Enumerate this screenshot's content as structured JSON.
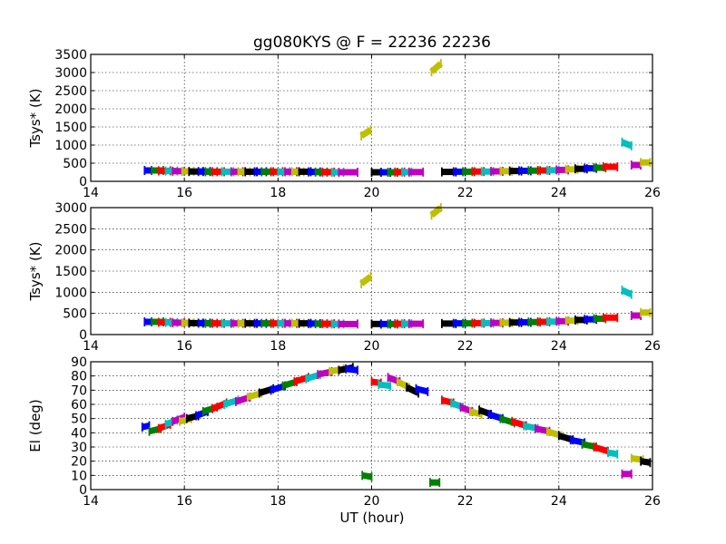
{
  "chart_data": {
    "type": "scatter",
    "title": "gg080KYS @ F = 22236 22236",
    "xlabel": "UT (hour)",
    "xlim": [
      14,
      26
    ],
    "xticks": [
      14,
      16,
      18,
      20,
      22,
      24,
      26
    ],
    "grid": true,
    "palette": [
      "#0000ff",
      "#008000",
      "#ff0000",
      "#00bfbf",
      "#bf00bf",
      "#bfbf00",
      "#000000"
    ],
    "panels": [
      {
        "ylabel": "Tsys* (K)",
        "ylim": [
          0,
          3500
        ],
        "yticks": [
          0,
          500,
          1000,
          1500,
          2000,
          2500,
          3000,
          3500
        ],
        "segments": [
          [
            15.15,
            15.3,
            300,
            300
          ],
          [
            15.3,
            15.55,
            300,
            300
          ],
          [
            15.45,
            15.7,
            290,
            290
          ],
          [
            15.6,
            15.85,
            285,
            285
          ],
          [
            15.75,
            16.0,
            280,
            280
          ],
          [
            15.95,
            16.2,
            275,
            275
          ],
          [
            16.1,
            16.4,
            270,
            270
          ],
          [
            16.3,
            16.55,
            270,
            270
          ],
          [
            16.45,
            16.7,
            265,
            265
          ],
          [
            16.6,
            16.85,
            265,
            265
          ],
          [
            16.8,
            17.05,
            265,
            265
          ],
          [
            17.0,
            17.25,
            265,
            265
          ],
          [
            17.15,
            17.4,
            265,
            265
          ],
          [
            17.3,
            17.55,
            265,
            265
          ],
          [
            17.5,
            17.75,
            265,
            265
          ],
          [
            17.65,
            17.9,
            265,
            265
          ],
          [
            17.85,
            18.1,
            265,
            265
          ],
          [
            18.0,
            18.25,
            265,
            265
          ],
          [
            18.15,
            18.4,
            265,
            265
          ],
          [
            18.3,
            18.55,
            265,
            265
          ],
          [
            18.45,
            18.7,
            265,
            265
          ],
          [
            18.65,
            18.9,
            260,
            260
          ],
          [
            18.8,
            19.05,
            255,
            255
          ],
          [
            18.95,
            19.2,
            255,
            255
          ],
          [
            19.15,
            19.4,
            250,
            250
          ],
          [
            19.3,
            19.7,
            250,
            250
          ],
          [
            19.78,
            19.98,
            1250,
            1420
          ],
          [
            20.0,
            20.2,
            250,
            250
          ],
          [
            20.2,
            20.4,
            250,
            250
          ],
          [
            20.35,
            20.55,
            250,
            250
          ],
          [
            20.5,
            20.7,
            255,
            255
          ],
          [
            20.65,
            20.85,
            255,
            255
          ],
          [
            20.8,
            21.1,
            255,
            255
          ],
          [
            21.28,
            21.48,
            3020,
            3250
          ],
          [
            21.5,
            21.8,
            260,
            260
          ],
          [
            21.75,
            22.0,
            265,
            265
          ],
          [
            21.95,
            22.2,
            265,
            265
          ],
          [
            22.15,
            22.4,
            270,
            270
          ],
          [
            22.35,
            22.6,
            270,
            270
          ],
          [
            22.55,
            22.8,
            275,
            275
          ],
          [
            22.75,
            23.0,
            280,
            280
          ],
          [
            22.95,
            23.2,
            285,
            285
          ],
          [
            23.15,
            23.4,
            290,
            290
          ],
          [
            23.35,
            23.6,
            295,
            295
          ],
          [
            23.55,
            23.8,
            300,
            300
          ],
          [
            23.75,
            24.0,
            305,
            305
          ],
          [
            23.95,
            24.2,
            315,
            315
          ],
          [
            24.15,
            24.4,
            330,
            330
          ],
          [
            24.35,
            24.6,
            345,
            345
          ],
          [
            24.55,
            24.8,
            360,
            360
          ],
          [
            24.75,
            25.0,
            375,
            375
          ],
          [
            24.95,
            25.25,
            400,
            400
          ],
          [
            25.35,
            25.55,
            1080,
            980
          ],
          [
            25.55,
            25.75,
            450,
            450
          ],
          [
            25.75,
            25.95,
            520,
            520
          ]
        ]
      },
      {
        "ylabel": "Tsys* (K)",
        "ylim": [
          0,
          3000
        ],
        "yticks": [
          0,
          500,
          1000,
          1500,
          2000,
          2500,
          3000
        ],
        "segments": [
          [
            15.15,
            15.3,
            300,
            300
          ],
          [
            15.3,
            15.55,
            300,
            300
          ],
          [
            15.45,
            15.7,
            290,
            290
          ],
          [
            15.6,
            15.85,
            285,
            285
          ],
          [
            15.75,
            16.0,
            280,
            280
          ],
          [
            15.95,
            16.2,
            275,
            275
          ],
          [
            16.1,
            16.4,
            270,
            270
          ],
          [
            16.3,
            16.55,
            270,
            270
          ],
          [
            16.45,
            16.7,
            265,
            265
          ],
          [
            16.6,
            16.85,
            265,
            265
          ],
          [
            16.8,
            17.05,
            265,
            265
          ],
          [
            17.0,
            17.25,
            265,
            265
          ],
          [
            17.15,
            17.4,
            265,
            265
          ],
          [
            17.3,
            17.55,
            265,
            265
          ],
          [
            17.5,
            17.75,
            265,
            265
          ],
          [
            17.65,
            17.9,
            265,
            265
          ],
          [
            17.85,
            18.1,
            265,
            265
          ],
          [
            18.0,
            18.25,
            265,
            265
          ],
          [
            18.15,
            18.4,
            265,
            265
          ],
          [
            18.3,
            18.55,
            265,
            265
          ],
          [
            18.45,
            18.7,
            265,
            265
          ],
          [
            18.65,
            18.9,
            260,
            260
          ],
          [
            18.8,
            19.05,
            255,
            255
          ],
          [
            18.95,
            19.2,
            255,
            255
          ],
          [
            19.15,
            19.4,
            250,
            250
          ],
          [
            19.3,
            19.7,
            250,
            250
          ],
          [
            19.78,
            19.98,
            1200,
            1370
          ],
          [
            20.0,
            20.2,
            250,
            250
          ],
          [
            20.2,
            20.4,
            250,
            250
          ],
          [
            20.35,
            20.55,
            250,
            250
          ],
          [
            20.5,
            20.7,
            255,
            255
          ],
          [
            20.65,
            20.85,
            255,
            255
          ],
          [
            20.8,
            21.1,
            255,
            255
          ],
          [
            21.28,
            21.48,
            2820,
            3000
          ],
          [
            21.5,
            21.8,
            260,
            260
          ],
          [
            21.75,
            22.0,
            265,
            265
          ],
          [
            21.95,
            22.2,
            265,
            265
          ],
          [
            22.15,
            22.4,
            270,
            270
          ],
          [
            22.35,
            22.6,
            270,
            270
          ],
          [
            22.55,
            22.8,
            275,
            275
          ],
          [
            22.75,
            23.0,
            280,
            280
          ],
          [
            22.95,
            23.2,
            285,
            285
          ],
          [
            23.15,
            23.4,
            290,
            290
          ],
          [
            23.35,
            23.6,
            295,
            295
          ],
          [
            23.55,
            23.8,
            300,
            300
          ],
          [
            23.75,
            24.0,
            305,
            305
          ],
          [
            23.95,
            24.2,
            315,
            315
          ],
          [
            24.15,
            24.4,
            330,
            330
          ],
          [
            24.35,
            24.6,
            345,
            345
          ],
          [
            24.55,
            24.8,
            360,
            360
          ],
          [
            24.75,
            25.0,
            375,
            375
          ],
          [
            24.95,
            25.25,
            400,
            400
          ],
          [
            25.35,
            25.55,
            1050,
            950
          ],
          [
            25.55,
            25.75,
            450,
            450
          ],
          [
            25.75,
            25.95,
            520,
            520
          ]
        ]
      },
      {
        "ylabel": "El (deg)",
        "ylim": [
          0,
          90
        ],
        "yticks": [
          0,
          10,
          20,
          30,
          40,
          50,
          60,
          70,
          80,
          90
        ],
        "segments": [
          [
            15.1,
            15.25,
            44,
            45
          ],
          [
            15.25,
            15.5,
            41,
            43
          ],
          [
            15.45,
            15.7,
            43,
            46
          ],
          [
            15.6,
            15.85,
            46,
            49
          ],
          [
            15.75,
            16.0,
            48,
            51
          ],
          [
            15.9,
            16.15,
            48,
            50
          ],
          [
            16.05,
            16.3,
            50,
            52
          ],
          [
            16.25,
            16.5,
            52,
            55
          ],
          [
            16.4,
            16.7,
            55,
            58
          ],
          [
            16.6,
            16.9,
            57,
            61
          ],
          [
            16.85,
            17.15,
            60,
            63
          ],
          [
            17.1,
            17.4,
            62,
            65
          ],
          [
            17.35,
            17.65,
            65,
            68
          ],
          [
            17.6,
            17.9,
            68,
            71
          ],
          [
            17.85,
            18.15,
            70,
            73
          ],
          [
            18.1,
            18.4,
            73,
            76
          ],
          [
            18.35,
            18.65,
            76,
            79
          ],
          [
            18.6,
            18.9,
            78,
            81
          ],
          [
            18.85,
            19.15,
            81,
            83
          ],
          [
            19.1,
            19.4,
            83,
            85
          ],
          [
            19.3,
            19.6,
            84,
            86
          ],
          [
            19.45,
            19.7,
            85,
            84
          ],
          [
            19.8,
            20.0,
            10,
            9
          ],
          [
            20.0,
            20.2,
            76,
            75
          ],
          [
            20.15,
            20.4,
            74,
            73
          ],
          [
            20.35,
            20.6,
            79,
            76
          ],
          [
            20.55,
            20.8,
            76,
            72
          ],
          [
            20.75,
            21.0,
            72,
            68
          ],
          [
            20.95,
            21.2,
            71,
            69
          ],
          [
            21.25,
            21.45,
            5,
            5
          ],
          [
            21.5,
            21.75,
            63,
            61
          ],
          [
            21.7,
            21.95,
            61,
            58
          ],
          [
            21.9,
            22.15,
            58,
            55
          ],
          [
            22.1,
            22.35,
            55,
            53
          ],
          [
            22.3,
            22.55,
            56,
            53
          ],
          [
            22.5,
            22.8,
            53,
            50
          ],
          [
            22.75,
            23.05,
            50,
            47
          ],
          [
            23.0,
            23.3,
            48,
            45
          ],
          [
            23.25,
            23.55,
            45,
            43
          ],
          [
            23.5,
            23.8,
            43,
            41
          ],
          [
            23.75,
            24.05,
            41,
            38
          ],
          [
            24.0,
            24.3,
            38,
            35
          ],
          [
            24.25,
            24.55,
            35,
            33
          ],
          [
            24.5,
            24.8,
            32,
            30
          ],
          [
            24.75,
            25.05,
            30,
            27
          ],
          [
            25.05,
            25.25,
            26,
            25
          ],
          [
            25.35,
            25.55,
            11,
            11
          ],
          [
            25.55,
            25.8,
            22,
            21
          ],
          [
            25.75,
            25.95,
            20,
            19
          ]
        ]
      }
    ]
  }
}
